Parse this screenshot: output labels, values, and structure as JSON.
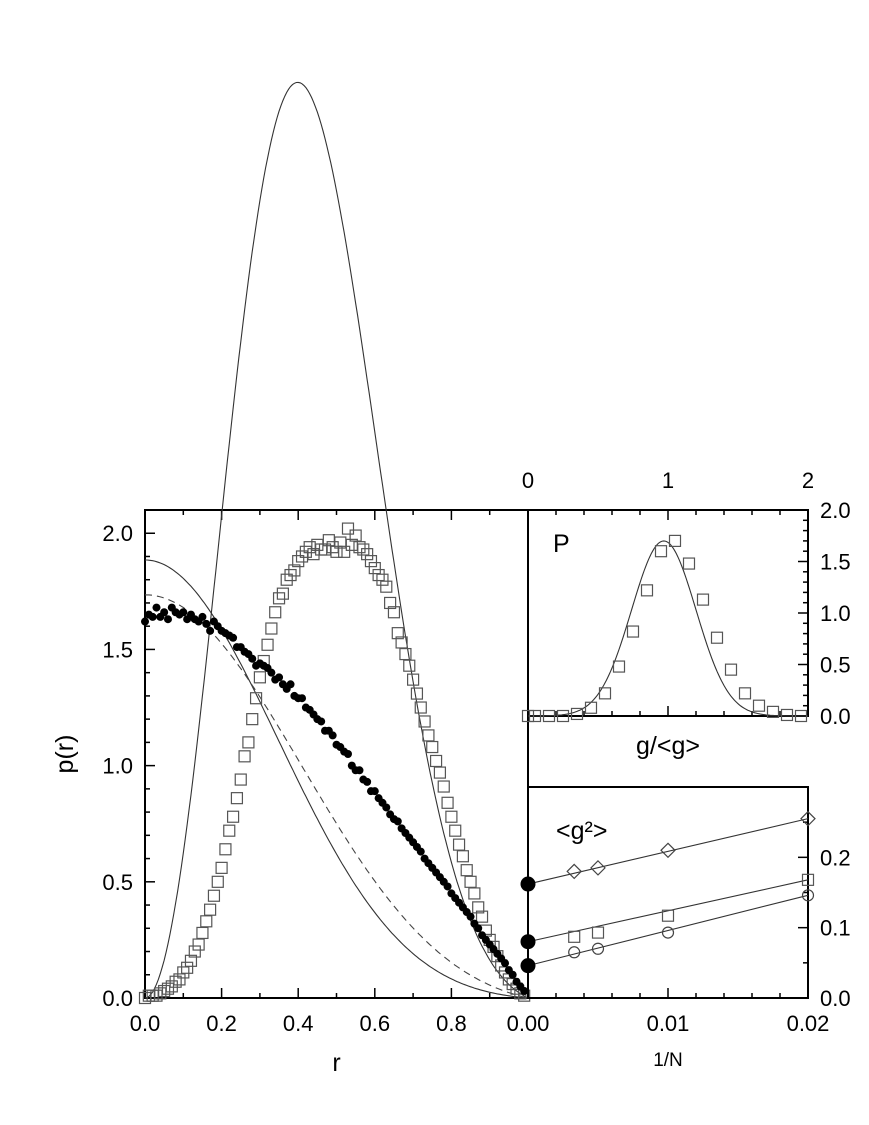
{
  "chart_data": [
    {
      "id": "main",
      "type": "scatter",
      "xlabel": "r",
      "ylabel": "p(r)",
      "xlim": [
        0,
        1
      ],
      "ylim": [
        0,
        2.1
      ],
      "xticks": [
        "0.0",
        "0.2",
        "0.4",
        "0.6",
        "0.8"
      ],
      "yticks": [
        "0.0",
        "0.5",
        "1.0",
        "1.5",
        "2.0"
      ],
      "series": [
        {
          "marker": "open-square",
          "x": [
            0.0,
            0.01,
            0.02,
            0.03,
            0.04,
            0.05,
            0.06,
            0.07,
            0.08,
            0.09,
            0.1,
            0.11,
            0.12,
            0.13,
            0.14,
            0.15,
            0.16,
            0.17,
            0.18,
            0.19,
            0.2,
            0.21,
            0.22,
            0.23,
            0.24,
            0.25,
            0.26,
            0.27,
            0.28,
            0.29,
            0.3,
            0.31,
            0.32,
            0.33,
            0.34,
            0.35,
            0.36,
            0.37,
            0.38,
            0.39,
            0.4,
            0.41,
            0.42,
            0.43,
            0.44,
            0.45,
            0.46,
            0.47,
            0.48,
            0.49,
            0.5,
            0.51,
            0.52,
            0.53,
            0.54,
            0.55,
            0.56,
            0.57,
            0.58,
            0.59,
            0.6,
            0.61,
            0.62,
            0.63,
            0.64,
            0.65,
            0.66,
            0.67,
            0.68,
            0.69,
            0.7,
            0.71,
            0.72,
            0.73,
            0.74,
            0.75,
            0.76,
            0.77,
            0.78,
            0.79,
            0.8,
            0.81,
            0.82,
            0.83,
            0.84,
            0.85,
            0.86,
            0.87,
            0.88,
            0.89,
            0.9,
            0.91,
            0.92,
            0.93,
            0.94,
            0.95,
            0.96,
            0.97,
            0.98,
            0.99
          ],
          "y": [
            0.0,
            0.01,
            0.01,
            0.01,
            0.02,
            0.03,
            0.04,
            0.05,
            0.07,
            0.08,
            0.11,
            0.13,
            0.16,
            0.2,
            0.23,
            0.28,
            0.33,
            0.38,
            0.44,
            0.5,
            0.56,
            0.64,
            0.72,
            0.78,
            0.86,
            0.94,
            1.04,
            1.1,
            1.2,
            1.29,
            1.38,
            1.45,
            1.52,
            1.59,
            1.66,
            1.72,
            1.74,
            1.8,
            1.82,
            1.84,
            1.88,
            1.9,
            1.92,
            1.94,
            1.91,
            1.95,
            1.93,
            1.93,
            1.97,
            1.94,
            1.92,
            1.96,
            1.92,
            2.02,
            1.95,
            1.99,
            1.94,
            1.93,
            1.91,
            1.88,
            1.85,
            1.82,
            1.8,
            1.77,
            1.7,
            1.66,
            1.57,
            1.53,
            1.48,
            1.43,
            1.37,
            1.31,
            1.25,
            1.19,
            1.13,
            1.08,
            1.02,
            0.97,
            0.91,
            0.84,
            0.78,
            0.72,
            0.66,
            0.61,
            0.55,
            0.5,
            0.45,
            0.39,
            0.35,
            0.29,
            0.25,
            0.22,
            0.18,
            0.14,
            0.11,
            0.08,
            0.06,
            0.04,
            0.02,
            0.01
          ]
        },
        {
          "marker": "filled-circle",
          "x": [
            0.0,
            0.01,
            0.02,
            0.03,
            0.04,
            0.05,
            0.06,
            0.07,
            0.08,
            0.09,
            0.1,
            0.11,
            0.12,
            0.13,
            0.14,
            0.15,
            0.16,
            0.17,
            0.18,
            0.19,
            0.2,
            0.21,
            0.22,
            0.23,
            0.24,
            0.25,
            0.26,
            0.27,
            0.28,
            0.29,
            0.3,
            0.31,
            0.32,
            0.33,
            0.34,
            0.35,
            0.36,
            0.37,
            0.38,
            0.39,
            0.4,
            0.41,
            0.42,
            0.43,
            0.44,
            0.45,
            0.46,
            0.47,
            0.48,
            0.49,
            0.5,
            0.51,
            0.52,
            0.53,
            0.54,
            0.55,
            0.56,
            0.57,
            0.58,
            0.59,
            0.6,
            0.61,
            0.62,
            0.63,
            0.64,
            0.65,
            0.66,
            0.67,
            0.68,
            0.69,
            0.7,
            0.71,
            0.72,
            0.73,
            0.74,
            0.75,
            0.76,
            0.77,
            0.78,
            0.79,
            0.8,
            0.81,
            0.82,
            0.83,
            0.84,
            0.85,
            0.86,
            0.87,
            0.88,
            0.89,
            0.9,
            0.91,
            0.92,
            0.93,
            0.94,
            0.95,
            0.96,
            0.97,
            0.98,
            0.99
          ],
          "y": [
            1.62,
            1.65,
            1.64,
            1.68,
            1.64,
            1.66,
            1.63,
            1.68,
            1.66,
            1.65,
            1.66,
            1.63,
            1.65,
            1.63,
            1.62,
            1.64,
            1.61,
            1.58,
            1.62,
            1.6,
            1.58,
            1.57,
            1.56,
            1.55,
            1.51,
            1.51,
            1.49,
            1.48,
            1.46,
            1.43,
            1.44,
            1.43,
            1.42,
            1.4,
            1.37,
            1.38,
            1.35,
            1.33,
            1.35,
            1.3,
            1.29,
            1.29,
            1.25,
            1.24,
            1.22,
            1.2,
            1.19,
            1.15,
            1.15,
            1.13,
            1.09,
            1.08,
            1.06,
            1.05,
            1.0,
            0.98,
            0.98,
            0.94,
            0.93,
            0.89,
            0.89,
            0.86,
            0.84,
            0.82,
            0.79,
            0.77,
            0.76,
            0.73,
            0.71,
            0.69,
            0.67,
            0.65,
            0.63,
            0.6,
            0.58,
            0.56,
            0.54,
            0.52,
            0.5,
            0.48,
            0.45,
            0.43,
            0.41,
            0.39,
            0.37,
            0.35,
            0.32,
            0.3,
            0.27,
            0.25,
            0.23,
            0.21,
            0.19,
            0.17,
            0.15,
            0.12,
            0.1,
            0.07,
            0.05,
            0.03
          ]
        }
      ]
    },
    {
      "id": "inset-top",
      "type": "scatter",
      "panel_label": "P",
      "xlabel": "g/<g>",
      "xlim": [
        0,
        2
      ],
      "ylim": [
        0,
        2.0
      ],
      "xticks": [
        "0",
        "1",
        "2"
      ],
      "yticks": [
        "0.0",
        "0.5",
        "1.0",
        "1.5",
        "2.0"
      ],
      "series": [
        {
          "marker": "open-square",
          "x": [
            0.0,
            0.05,
            0.15,
            0.25,
            0.35,
            0.45,
            0.55,
            0.65,
            0.75,
            0.85,
            0.95,
            1.05,
            1.15,
            1.25,
            1.35,
            1.45,
            1.55,
            1.65,
            1.75,
            1.85,
            1.95
          ],
          "y": [
            0.0,
            0.0,
            0.0,
            0.0,
            0.02,
            0.08,
            0.22,
            0.48,
            0.82,
            1.22,
            1.6,
            1.7,
            1.48,
            1.13,
            0.76,
            0.45,
            0.22,
            0.1,
            0.04,
            0.01,
            0.0
          ]
        }
      ]
    },
    {
      "id": "inset-bottom",
      "type": "scatter",
      "panel_label": "<g²>",
      "xlabel": "1/N",
      "xlim": [
        0,
        0.02
      ],
      "ylim": [
        0,
        0.3
      ],
      "xticks": [
        "0.00",
        "0.01",
        "0.02"
      ],
      "yticks": [
        "0.0",
        "0.1",
        "0.2"
      ],
      "series": [
        {
          "marker": "open-diamond",
          "x": [
            0.0033,
            0.005,
            0.01,
            0.02
          ],
          "y": [
            0.18,
            0.185,
            0.21,
            0.255
          ]
        },
        {
          "marker": "open-square",
          "x": [
            0.0033,
            0.005,
            0.01,
            0.02
          ],
          "y": [
            0.087,
            0.093,
            0.117,
            0.168
          ]
        },
        {
          "marker": "open-circle",
          "x": [
            0.0033,
            0.005,
            0.01,
            0.02
          ],
          "y": [
            0.065,
            0.07,
            0.093,
            0.146
          ]
        },
        {
          "marker": "filled-circle",
          "x": [
            0,
            0,
            0
          ],
          "y": [
            0.162,
            0.08,
            0.046
          ]
        }
      ]
    }
  ]
}
